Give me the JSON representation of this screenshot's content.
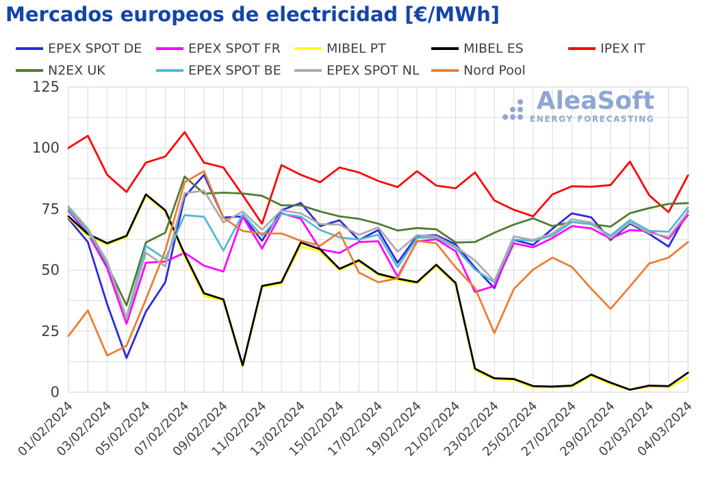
{
  "header": {
    "title": "Mercados europeos de electricidad [€/MWh]",
    "title_color": "#1445A8"
  },
  "logo": {
    "name": "AleaSoft",
    "tagline": "ENERGY FORECASTING",
    "color": "#8FA6D4"
  },
  "chart_data": {
    "type": "line",
    "title": "Mercados europeos de electricidad [€/MWh]",
    "xlabel": "",
    "ylabel": "",
    "unit": "€/MWh",
    "ylim": [
      0,
      125
    ],
    "yticks": [
      0,
      25,
      50,
      75,
      100,
      125
    ],
    "grid": {
      "on": true,
      "y_step": 12.5,
      "x_step_days": 1,
      "color": "#D9D9D9"
    },
    "legend_position": "top",
    "x": [
      "01/02/2024",
      "02/02/2024",
      "03/02/2024",
      "04/02/2024",
      "05/02/2024",
      "06/02/2024",
      "07/02/2024",
      "08/02/2024",
      "09/02/2024",
      "10/02/2024",
      "11/02/2024",
      "12/02/2024",
      "13/02/2024",
      "14/02/2024",
      "15/02/2024",
      "16/02/2024",
      "17/02/2024",
      "18/02/2024",
      "19/02/2024",
      "20/02/2024",
      "21/02/2024",
      "22/02/2024",
      "23/02/2024",
      "24/02/2024",
      "25/02/2024",
      "26/02/2024",
      "27/02/2024",
      "28/02/2024",
      "29/02/2024",
      "01/03/2024",
      "02/03/2024",
      "03/03/2024",
      "04/03/2024"
    ],
    "x_tick_labels": [
      "01/02/2024",
      "03/02/2024",
      "05/02/2024",
      "07/02/2024",
      "09/02/2024",
      "11/02/2024",
      "13/02/2024",
      "15/02/2024",
      "17/02/2024",
      "19/02/2024",
      "21/02/2024",
      "23/02/2024",
      "25/02/2024",
      "27/02/2024",
      "29/02/2024",
      "02/03/2024",
      "04/03/2024"
    ],
    "series": [
      {
        "name": "EPEX SPOT DE",
        "color": "#2929DF",
        "values": [
          71,
          61.5,
          36,
          14,
          33,
          45,
          80,
          89,
          71.5,
          72,
          62,
          74.5,
          77.5,
          68,
          70.4,
          62.3,
          66.4,
          53,
          64,
          64.3,
          60.5,
          51,
          42.6,
          62.4,
          60.3,
          66.9,
          73.2,
          71.6,
          62.3,
          69,
          64.8,
          59.6,
          74
        ]
      },
      {
        "name": "EPEX SPOT FR",
        "color": "#FF00FF",
        "values": [
          74.2,
          65,
          50.8,
          28,
          53,
          53.5,
          57.1,
          51.8,
          49.4,
          72,
          58.8,
          73.3,
          71,
          58.5,
          57,
          61.5,
          61.8,
          47.3,
          61.7,
          62.6,
          57.7,
          41,
          43.5,
          61,
          59.3,
          63.1,
          68,
          67.1,
          62.9,
          66.4,
          65.9,
          62.9,
          72.5
        ]
      },
      {
        "name": "MIBEL PT",
        "color": "#FFFF00",
        "values": [
          71.5,
          64,
          60.5,
          63.5,
          80.5,
          74,
          55.5,
          39.5,
          37.5,
          10.5,
          43,
          44.5,
          59.8,
          57.5,
          50,
          53.5,
          48,
          46,
          44.5,
          51.7,
          44,
          9,
          5.2,
          5,
          2,
          2,
          2.2,
          6.7,
          3.4,
          1,
          2.2,
          2,
          6
        ]
      },
      {
        "name": "MIBEL ES",
        "color": "#000000",
        "values": [
          72,
          64.8,
          61,
          64,
          81,
          74.5,
          56.5,
          40.5,
          38,
          11,
          43.5,
          45,
          61.3,
          58.5,
          50.5,
          54,
          48.5,
          46.5,
          45,
          52.2,
          44.7,
          9.6,
          5.7,
          5.4,
          2.5,
          2.3,
          2.7,
          7.2,
          3.9,
          1,
          2.7,
          2.5,
          8
        ]
      },
      {
        "name": "IPEX IT",
        "color": "#FF0000",
        "values": [
          100,
          105,
          89,
          82,
          94,
          96.5,
          106.5,
          94,
          92,
          80.7,
          69,
          93,
          89,
          86,
          92,
          90,
          86.5,
          84,
          90.5,
          84.6,
          83.5,
          90,
          78.5,
          74.7,
          72,
          81,
          84.3,
          84.1,
          84.8,
          94.4,
          80.6,
          73.7,
          88.8
        ]
      },
      {
        "name": "N2EX UK",
        "color": "#4E7B2F",
        "values": [
          75.8,
          66.5,
          52.2,
          35.5,
          61.3,
          65.3,
          88.3,
          81.3,
          81.7,
          81.4,
          80.4,
          76.5,
          76.5,
          74,
          72,
          71,
          69,
          66.2,
          67.2,
          66.7,
          61.3,
          61.5,
          65.3,
          68.6,
          71.2,
          68,
          69.7,
          68.8,
          67.8,
          73.3,
          75.4,
          77.1,
          77.4
        ]
      },
      {
        "name": "EPEX SPOT BE",
        "color": "#53B8D5",
        "values": [
          74.7,
          66,
          52.8,
          30.5,
          59.9,
          54.6,
          72.5,
          71.8,
          58,
          72.8,
          64,
          73,
          71.9,
          66.4,
          63.4,
          62.5,
          64.5,
          51.2,
          63.2,
          63.4,
          59.1,
          50.2,
          45,
          62.5,
          62,
          64.1,
          69.7,
          68.8,
          64.1,
          70.5,
          66.1,
          65.7,
          75.6
        ]
      },
      {
        "name": "EPEX SPOT NL",
        "color": "#ABABAB",
        "values": [
          76,
          67,
          53.6,
          30,
          57.1,
          51.5,
          81.5,
          82.5,
          69.5,
          74,
          66.5,
          74.5,
          73.2,
          68.8,
          68.6,
          64.4,
          67.5,
          57.5,
          64.3,
          63.8,
          59.6,
          53.9,
          45.5,
          63.8,
          62.3,
          65,
          70.8,
          69.5,
          63.1,
          69.5,
          65.2,
          63.6,
          73.7
        ]
      },
      {
        "name": "Nord Pool",
        "color": "#ED7D31",
        "values": [
          23,
          33.5,
          15,
          19,
          38,
          58,
          86,
          90.5,
          71.5,
          66,
          65,
          65,
          62,
          60,
          65.5,
          49,
          45,
          46.6,
          62,
          61,
          51.1,
          42.6,
          24.2,
          42.2,
          50.2,
          55.1,
          51.3,
          42.4,
          34.1,
          43.3,
          52.7,
          55.1,
          61.5
        ]
      }
    ]
  }
}
